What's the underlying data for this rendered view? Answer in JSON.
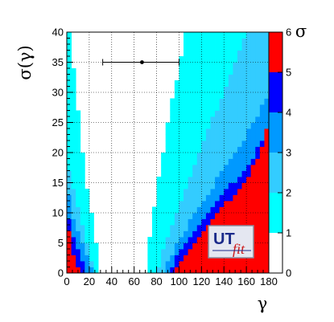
{
  "chart_data": {
    "type": "heatmap",
    "xlabel": "γ",
    "ylabel": "σ(γ)",
    "colorbar_label": "σ",
    "xlim": [
      0,
      180
    ],
    "ylim": [
      0,
      40
    ],
    "grid": true,
    "x_ticks": [
      "0",
      "20",
      "40",
      "60",
      "80",
      "100",
      "120",
      "140",
      "160",
      "180"
    ],
    "y_ticks": [
      "0",
      "5",
      "10",
      "15",
      "20",
      "25",
      "30",
      "35",
      "40"
    ],
    "colorbar": {
      "range": [
        0,
        6
      ],
      "ticks": [
        "0",
        "1",
        "2",
        "3",
        "4",
        "5",
        "6"
      ],
      "levels": [
        {
          "from": 0,
          "to": 1,
          "color": "#ffffff"
        },
        {
          "from": 1,
          "to": 2,
          "color": "#00ffff"
        },
        {
          "from": 2,
          "to": 3,
          "color": "#33ccff"
        },
        {
          "from": 3,
          "to": 4,
          "color": "#0099ff"
        },
        {
          "from": 4,
          "to": 5,
          "color": "#0000ff"
        },
        {
          "from": 5,
          "to": 6,
          "color": "#ff0000"
        }
      ]
    },
    "grid_sigma_step": 1,
    "region_boundaries": {
      "sigma": [
        0,
        5,
        10,
        15,
        20,
        25,
        30,
        35,
        40
      ],
      "c1_left": [
        30,
        26,
        22,
        17,
        14,
        11,
        9,
        5,
        3
      ],
      "c1_right": [
        70,
        73,
        77,
        81,
        86,
        90,
        95,
        101,
        105
      ],
      "c2_left": [
        25,
        18,
        11,
        4,
        0,
        0,
        0,
        0,
        0
      ],
      "c2_right": [
        80,
        88,
        97,
        107,
        118,
        128,
        140,
        150,
        160
      ],
      "c3_left": [
        23,
        14,
        5,
        0,
        0,
        0,
        0,
        0,
        0
      ],
      "c3_right": [
        86,
        98,
        115,
        132,
        150,
        167,
        180,
        180,
        180
      ],
      "c4_left": [
        18,
        8,
        0,
        0,
        0,
        0,
        0,
        0,
        0
      ],
      "c4_right": [
        90,
        105,
        125,
        148,
        168,
        180,
        180,
        180,
        180
      ],
      "c5_left": [
        13,
        3,
        0,
        0,
        0,
        0,
        0,
        0,
        0
      ],
      "c5_right": [
        96,
        113,
        135,
        158,
        172,
        180,
        180,
        180,
        180
      ]
    },
    "measurement": {
      "x": 67,
      "y": 35,
      "x_low": 32,
      "x_high": 100
    }
  },
  "logo": {
    "text_ut": "UT",
    "text_fit": "fit"
  }
}
